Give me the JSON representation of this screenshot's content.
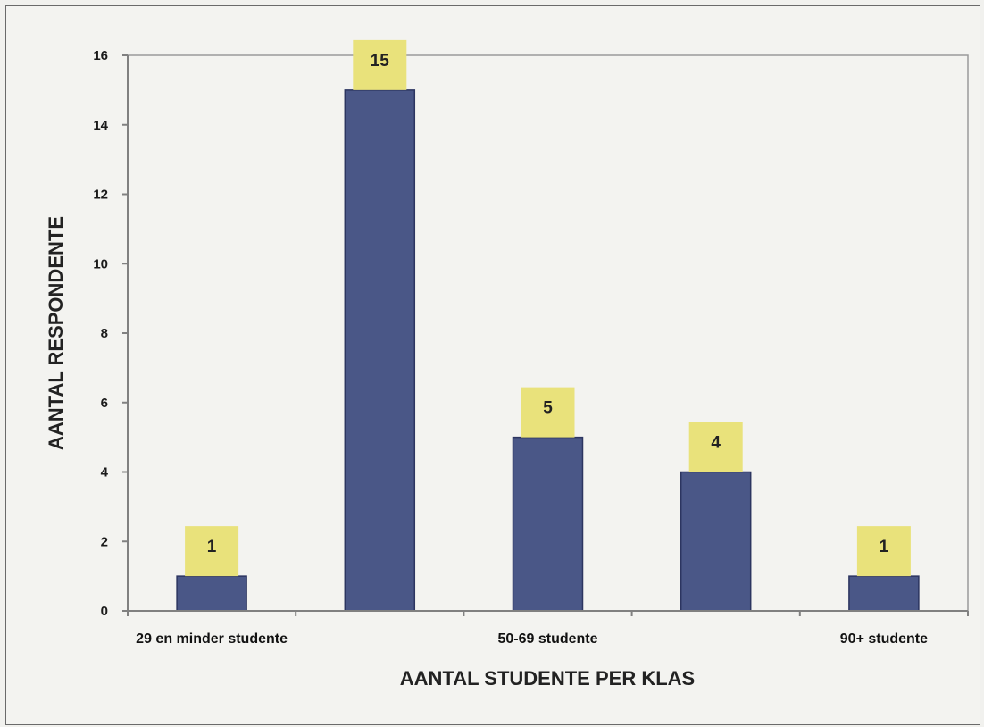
{
  "chart_data": {
    "type": "bar",
    "categories": [
      "29 en minder studente",
      "",
      "50-69 studente",
      "",
      "90+ studente"
    ],
    "values": [
      1,
      15,
      5,
      4,
      1
    ],
    "data_labels": [
      "1",
      "15",
      "5",
      "4",
      "1"
    ],
    "title": "",
    "xlabel": "AANTAL STUDENTE PER KLAS",
    "ylabel": "AANTAL RESPONDENTE",
    "ylim": [
      0,
      16
    ],
    "yticks": [
      "0",
      "2",
      "4",
      "6",
      "8",
      "10",
      "12",
      "14",
      "16"
    ],
    "grid": false,
    "legend": "none"
  },
  "colors": {
    "bar": "#4a5787",
    "label_box": "#e9e27b",
    "plot_background": "#f3f3f0",
    "axis": "#808080"
  }
}
